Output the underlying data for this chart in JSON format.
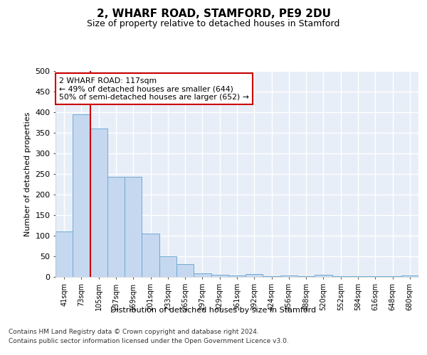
{
  "title": "2, WHARF ROAD, STAMFORD, PE9 2DU",
  "subtitle": "Size of property relative to detached houses in Stamford",
  "xlabel": "Distribution of detached houses by size in Stamford",
  "ylabel": "Number of detached properties",
  "categories": [
    "41sqm",
    "73sqm",
    "105sqm",
    "137sqm",
    "169sqm",
    "201sqm",
    "233sqm",
    "265sqm",
    "297sqm",
    "329sqm",
    "361sqm",
    "392sqm",
    "424sqm",
    "456sqm",
    "488sqm",
    "520sqm",
    "552sqm",
    "584sqm",
    "616sqm",
    "648sqm",
    "680sqm"
  ],
  "values": [
    111,
    394,
    361,
    243,
    243,
    105,
    50,
    31,
    9,
    6,
    4,
    7,
    1,
    4,
    1,
    5,
    1,
    1,
    1,
    1,
    4
  ],
  "bar_color": "#c5d8f0",
  "bar_edge_color": "#6faad4",
  "background_color": "#e8eef8",
  "grid_color": "#ffffff",
  "vline_x_index": 2,
  "vline_color": "#cc0000",
  "annotation_text": "2 WHARF ROAD: 117sqm\n← 49% of detached houses are smaller (644)\n50% of semi-detached houses are larger (652) →",
  "annotation_box_color": "#ffffff",
  "annotation_box_edge": "#cc0000",
  "ylim": [
    0,
    500
  ],
  "yticks": [
    0,
    50,
    100,
    150,
    200,
    250,
    300,
    350,
    400,
    450,
    500
  ],
  "footer_line1": "Contains HM Land Registry data © Crown copyright and database right 2024.",
  "footer_line2": "Contains public sector information licensed under the Open Government Licence v3.0."
}
